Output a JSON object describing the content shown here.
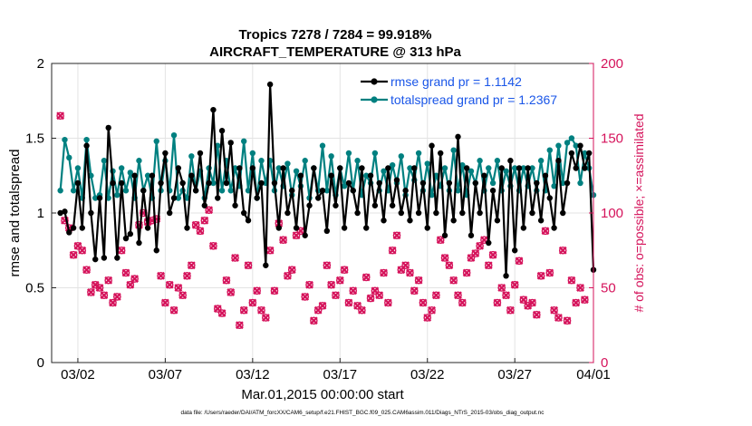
{
  "chart_data": {
    "type": "line",
    "title": "Tropics 7278 / 7284 = 99.918%",
    "subtitle": "AIRCRAFT_TEMPERATURE @ 313 hPa",
    "xlabel": "Mar.01,2015 00:00:00 start",
    "ylabel": "rmse and totalspread",
    "ylabel_right": "# of obs: o=possible; ×=assimilated",
    "footer": "data file: /Users/raeder/DAI/ATM_forcXX/CAM6_setup/f.e21.FHIST_BGC.f09_025.CAM6assim.011/Diags_NTrS_2015-03/obs_diag_output.nc",
    "xlim": [
      0.5,
      31.5
    ],
    "ylim": [
      0,
      2
    ],
    "ylim_right": [
      0,
      200
    ],
    "xticks": [
      {
        "x": 2,
        "label": "03/02"
      },
      {
        "x": 7,
        "label": "03/07"
      },
      {
        "x": 12,
        "label": "03/12"
      },
      {
        "x": 17,
        "label": "03/17"
      },
      {
        "x": 22,
        "label": "03/22"
      },
      {
        "x": 27,
        "label": "03/27"
      },
      {
        "x": 32,
        "label": "04/01"
      }
    ],
    "yticks": [
      {
        "v": 0,
        "label": "0"
      },
      {
        "v": 0.5,
        "label": "0.5"
      },
      {
        "v": 1,
        "label": "1"
      },
      {
        "v": 1.5,
        "label": "1.5"
      },
      {
        "v": 2,
        "label": "2"
      }
    ],
    "yticks_right": [
      {
        "v": 0,
        "label": "0"
      },
      {
        "v": 50,
        "label": "50"
      },
      {
        "v": 100,
        "label": "100"
      },
      {
        "v": 150,
        "label": "150"
      },
      {
        "v": 200,
        "label": "200"
      }
    ],
    "colors": {
      "rmse": "#000000",
      "totalspread": "#008080",
      "obs": "#d5135b",
      "right_axis": "#d5135b"
    },
    "series": [
      {
        "name": "rmse",
        "legend": "rmse grand pr = 1.1142",
        "x_start": 1.0,
        "x_step": 0.25,
        "values": [
          1.0,
          1.01,
          0.87,
          0.9,
          1.2,
          0.9,
          1.45,
          1.0,
          0.69,
          1.1,
          0.7,
          1.57,
          1.2,
          0.7,
          1.2,
          0.83,
          0.86,
          1.25,
          0.8,
          1.15,
          0.9,
          1.25,
          0.75,
          1.2,
          1.4,
          1.0,
          1.1,
          1.3,
          1.2,
          0.9,
          1.25,
          1.15,
          1.4,
          1.05,
          1.2,
          1.69,
          1.1,
          1.55,
          1.2,
          1.47,
          1.05,
          1.3,
          1.0,
          0.95,
          1.3,
          1.1,
          1.2,
          0.65,
          1.86,
          1.2,
          0.9,
          1.3,
          1.0,
          1.15,
          0.9,
          1.25,
          0.85,
          1.05,
          1.3,
          1.1,
          1.15,
          0.88,
          1.25,
          1.05,
          1.3,
          0.9,
          1.2,
          1.15,
          1.0,
          1.3,
          0.9,
          1.25,
          1.05,
          1.2,
          0.95,
          1.3,
          1.05,
          1.22,
          1.0,
          1.15,
          0.95,
          1.3,
          1.0,
          1.2,
          0.9,
          1.45,
          1.0,
          1.4,
          0.85,
          1.2,
          0.95,
          1.51,
          1.0,
          1.3,
          0.85,
          1.2,
          1.0,
          1.25,
          0.8,
          1.15,
          0.95,
          1.3,
          0.58,
          1.35,
          0.75,
          1.3,
          0.9,
          1.3,
          1.0,
          1.2,
          0.95,
          1.25,
          1.1,
          0.9,
          1.35,
          1.0,
          1.2,
          1.4,
          1.3,
          1.45,
          1.3,
          1.4,
          0.62
        ],
        "marker": "o"
      },
      {
        "name": "totalspread",
        "legend": "totalspread grand pr = 1.2367",
        "x_start": 1.0,
        "x_step": 0.25,
        "values": [
          1.15,
          1.49,
          1.37,
          1.15,
          1.3,
          1.1,
          1.49,
          1.25,
          1.1,
          1.12,
          1.35,
          1.1,
          1.28,
          1.12,
          1.3,
          1.15,
          1.27,
          1.1,
          1.35,
          1.15,
          1.25,
          1.1,
          1.48,
          1.15,
          1.35,
          1.15,
          1.52,
          1.1,
          1.15,
          1.1,
          1.38,
          1.15,
          1.28,
          1.1,
          1.3,
          1.2,
          1.45,
          1.15,
          1.35,
          1.15,
          1.3,
          1.18,
          1.48,
          1.15,
          1.4,
          1.1,
          1.35,
          1.2,
          1.35,
          1.15,
          1.3,
          1.18,
          1.33,
          1.12,
          1.28,
          1.18,
          1.35,
          1.1,
          1.3,
          1.15,
          1.45,
          1.15,
          1.38,
          1.12,
          1.3,
          1.18,
          1.4,
          1.15,
          1.35,
          1.12,
          1.25,
          1.2,
          1.4,
          1.15,
          1.28,
          1.15,
          1.32,
          1.2,
          1.38,
          1.12,
          1.3,
          1.22,
          1.4,
          1.15,
          1.33,
          1.12,
          1.25,
          1.18,
          1.3,
          1.15,
          1.42,
          1.15,
          1.32,
          1.12,
          1.28,
          1.2,
          1.35,
          1.15,
          1.3,
          1.2,
          1.35,
          1.15,
          1.28,
          1.18,
          1.3,
          1.15,
          1.3,
          1.18,
          1.3,
          1.15,
          1.35,
          1.15,
          1.42,
          1.18,
          1.45,
          1.2,
          1.47,
          1.5,
          1.45,
          1.2,
          1.4,
          1.3,
          1.12
        ],
        "marker": "o"
      },
      {
        "name": "obs_possible",
        "axis": "right",
        "marker": "o",
        "x_start": 1.0,
        "x_step": 0.25,
        "values": [
          165,
          95,
          90,
          72,
          78,
          75,
          62,
          47,
          52,
          50,
          45,
          55,
          40,
          44,
          75,
          60,
          52,
          56,
          92,
          100,
          94,
          95,
          96,
          58,
          40,
          52,
          35,
          50,
          45,
          58,
          65,
          92,
          88,
          95,
          102,
          78,
          36,
          33,
          55,
          47,
          70,
          25,
          35,
          65,
          40,
          48,
          35,
          30,
          75,
          48,
          93,
          82,
          58,
          62,
          85,
          88,
          44,
          52,
          28,
          35,
          38,
          65,
          52,
          45,
          55,
          62,
          40,
          48,
          38,
          35,
          57,
          43,
          48,
          45,
          60,
          40,
          75,
          85,
          62,
          65,
          60,
          48,
          55,
          40,
          30,
          35,
          45,
          82,
          70,
          65,
          55,
          45,
          40,
          60,
          70,
          73,
          78,
          82,
          65,
          72,
          40,
          50,
          45,
          35,
          52,
          68,
          42,
          38,
          40,
          32,
          58,
          88,
          60,
          35,
          30,
          75,
          28,
          55,
          40,
          50,
          42
        ]
      },
      {
        "name": "obs_assimilated",
        "axis": "right",
        "marker": "x",
        "x_start": 1.0,
        "x_step": 0.25,
        "values": [
          165,
          95,
          90,
          72,
          78,
          75,
          62,
          47,
          52,
          50,
          45,
          55,
          40,
          44,
          75,
          60,
          52,
          56,
          92,
          100,
          94,
          95,
          96,
          58,
          40,
          52,
          35,
          50,
          45,
          58,
          65,
          92,
          88,
          95,
          102,
          78,
          36,
          33,
          55,
          47,
          70,
          25,
          35,
          65,
          40,
          48,
          35,
          30,
          75,
          48,
          93,
          82,
          58,
          62,
          85,
          88,
          44,
          52,
          28,
          35,
          38,
          65,
          52,
          45,
          55,
          62,
          40,
          48,
          38,
          35,
          57,
          43,
          48,
          45,
          60,
          40,
          75,
          85,
          62,
          65,
          60,
          48,
          55,
          40,
          30,
          35,
          45,
          82,
          70,
          65,
          55,
          45,
          40,
          60,
          70,
          73,
          78,
          82,
          65,
          72,
          40,
          50,
          45,
          35,
          52,
          68,
          42,
          38,
          40,
          32,
          58,
          88,
          60,
          35,
          30,
          75,
          28,
          55,
          40,
          50,
          42
        ]
      }
    ]
  }
}
